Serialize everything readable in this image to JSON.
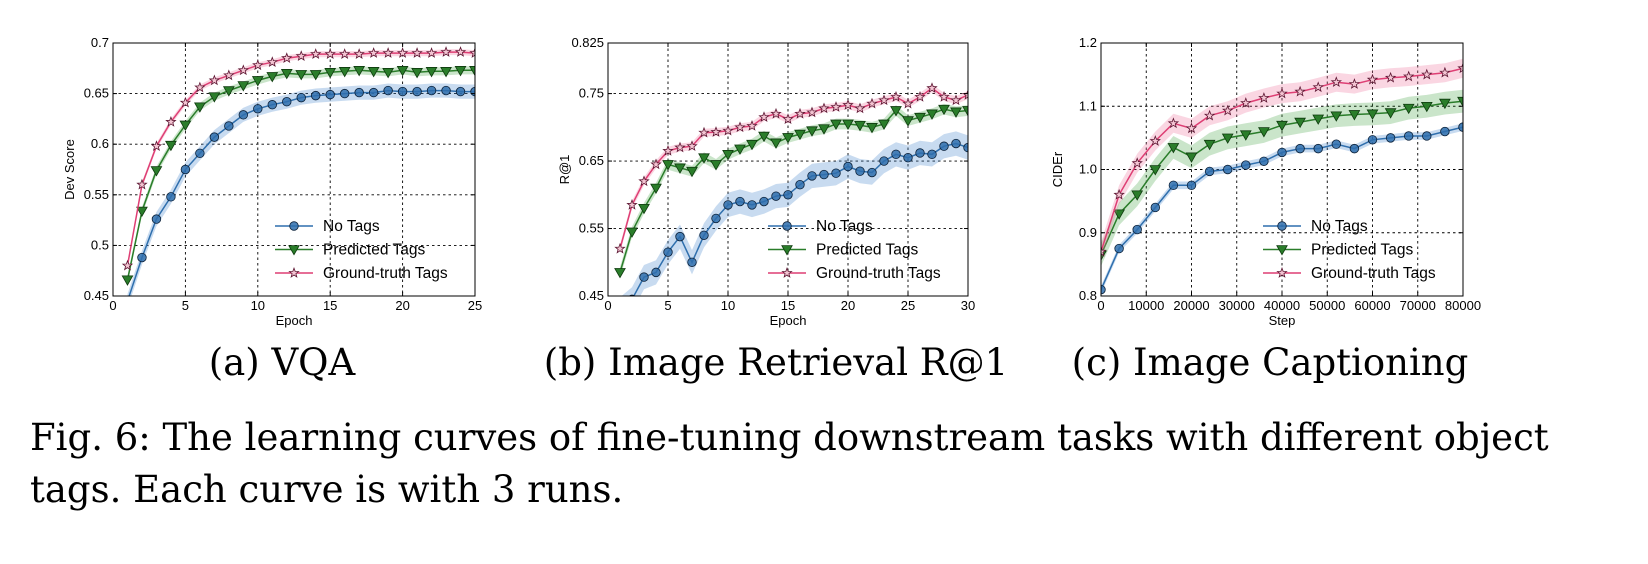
{
  "figure_caption": {
    "label": "Fig. 6:",
    "text": "The learning curves of fine-tuning downstream tasks with different object tags. Each curve is with 3 runs."
  },
  "colors": {
    "no_tags": "#2f6fad",
    "no_tags_fill": "#3a7dc9",
    "predicted_tags": "#2a7d2a",
    "predicted_tags_fill": "#3fa33f",
    "ground_truth_tags": "#de3f74",
    "ground_truth_tags_fill": "#ee6b96"
  },
  "chart_data": [
    {
      "type": "line",
      "subcaption": "(a) VQA",
      "xlabel": "Epoch",
      "ylabel": "Dev Score",
      "xlim": [
        0,
        25
      ],
      "ylim": [
        0.45,
        0.7
      ],
      "xticks": [
        0,
        5,
        10,
        15,
        20,
        25
      ],
      "yticks": [
        0.45,
        0.5,
        0.55,
        0.6,
        0.65,
        0.7
      ],
      "xtick_labels": [
        "0",
        "5",
        "10",
        "15",
        "20",
        "25"
      ],
      "ytick_labels": [
        "0.45",
        "0.5",
        "0.55",
        "0.6",
        "0.65",
        "0.7"
      ],
      "grid": true,
      "legend": "bottom-right",
      "series": [
        {
          "name": "No Tags",
          "marker": "circle",
          "x": [
            1,
            2,
            3,
            4,
            5,
            6,
            7,
            8,
            9,
            10,
            11,
            12,
            13,
            14,
            15,
            16,
            17,
            18,
            19,
            20,
            21,
            22,
            23,
            24,
            25
          ],
          "y": [
            0.445,
            0.488,
            0.526,
            0.548,
            0.575,
            0.591,
            0.607,
            0.618,
            0.629,
            0.635,
            0.639,
            0.642,
            0.646,
            0.648,
            0.649,
            0.65,
            0.651,
            0.651,
            0.653,
            0.652,
            0.652,
            0.653,
            0.653,
            0.652,
            0.652
          ],
          "band": 0.007
        },
        {
          "name": "Predicted Tags",
          "marker": "triangle-down",
          "x": [
            1,
            2,
            3,
            4,
            5,
            6,
            7,
            8,
            9,
            10,
            11,
            12,
            13,
            14,
            15,
            16,
            17,
            18,
            19,
            20,
            21,
            22,
            23,
            24,
            25
          ],
          "y": [
            0.466,
            0.534,
            0.574,
            0.599,
            0.619,
            0.637,
            0.647,
            0.653,
            0.658,
            0.663,
            0.667,
            0.67,
            0.669,
            0.669,
            0.671,
            0.672,
            0.673,
            0.672,
            0.671,
            0.673,
            0.671,
            0.672,
            0.672,
            0.673,
            0.673
          ],
          "band": 0.004
        },
        {
          "name": "Ground-truth Tags",
          "marker": "star",
          "x": [
            1,
            2,
            3,
            4,
            5,
            6,
            7,
            8,
            9,
            10,
            11,
            12,
            13,
            14,
            15,
            16,
            17,
            18,
            19,
            20,
            21,
            22,
            23,
            24,
            25
          ],
          "y": [
            0.48,
            0.56,
            0.598,
            0.622,
            0.641,
            0.656,
            0.663,
            0.668,
            0.673,
            0.678,
            0.681,
            0.685,
            0.687,
            0.689,
            0.689,
            0.689,
            0.689,
            0.69,
            0.69,
            0.69,
            0.69,
            0.69,
            0.691,
            0.691,
            0.69
          ],
          "band": 0.003
        }
      ]
    },
    {
      "type": "line",
      "subcaption": "(b) Image Retrieval R@1",
      "xlabel": "Epoch",
      "ylabel": "R@1",
      "xlim": [
        0,
        30
      ],
      "ylim": [
        0.45,
        0.825
      ],
      "xticks": [
        0,
        5,
        10,
        15,
        20,
        25,
        30
      ],
      "yticks": [
        0.45,
        0.55,
        0.65,
        0.75,
        0.825
      ],
      "xtick_labels": [
        "0",
        "5",
        "10",
        "15",
        "20",
        "25",
        "30"
      ],
      "ytick_labels": [
        "0.45",
        "0.55",
        "0.65",
        "0.75",
        "0.825"
      ],
      "grid": true,
      "legend": "bottom-right",
      "series": [
        {
          "name": "No Tags",
          "marker": "circle",
          "x": [
            1,
            2,
            3,
            4,
            5,
            6,
            7,
            8,
            9,
            10,
            11,
            12,
            13,
            14,
            15,
            16,
            17,
            18,
            19,
            20,
            21,
            22,
            23,
            24,
            25,
            26,
            27,
            28,
            29,
            30
          ],
          "y": [
            0.43,
            0.445,
            0.478,
            0.485,
            0.515,
            0.538,
            0.5,
            0.54,
            0.565,
            0.585,
            0.59,
            0.585,
            0.59,
            0.598,
            0.6,
            0.615,
            0.628,
            0.63,
            0.632,
            0.642,
            0.635,
            0.633,
            0.65,
            0.66,
            0.655,
            0.662,
            0.66,
            0.672,
            0.676,
            0.67
          ],
          "band": 0.018
        },
        {
          "name": "Predicted Tags",
          "marker": "triangle-down",
          "x": [
            1,
            2,
            3,
            4,
            5,
            6,
            7,
            8,
            9,
            10,
            11,
            12,
            13,
            14,
            15,
            16,
            17,
            18,
            19,
            20,
            21,
            22,
            23,
            24,
            25,
            26,
            27,
            28,
            29,
            30
          ],
          "y": [
            0.485,
            0.545,
            0.58,
            0.61,
            0.645,
            0.64,
            0.635,
            0.655,
            0.645,
            0.66,
            0.668,
            0.675,
            0.687,
            0.677,
            0.685,
            0.69,
            0.695,
            0.698,
            0.705,
            0.705,
            0.703,
            0.7,
            0.705,
            0.725,
            0.71,
            0.715,
            0.72,
            0.727,
            0.723,
            0.725
          ],
          "band": 0.008
        },
        {
          "name": "Ground-truth Tags",
          "marker": "star",
          "x": [
            1,
            2,
            3,
            4,
            5,
            6,
            7,
            8,
            9,
            10,
            11,
            12,
            13,
            14,
            15,
            16,
            17,
            18,
            19,
            20,
            21,
            22,
            23,
            24,
            25,
            26,
            27,
            28,
            29,
            30
          ],
          "y": [
            0.52,
            0.585,
            0.62,
            0.645,
            0.665,
            0.67,
            0.672,
            0.692,
            0.693,
            0.695,
            0.7,
            0.702,
            0.715,
            0.72,
            0.712,
            0.72,
            0.722,
            0.728,
            0.73,
            0.733,
            0.728,
            0.735,
            0.74,
            0.745,
            0.735,
            0.745,
            0.758,
            0.745,
            0.74,
            0.748
          ],
          "band": 0.006
        }
      ]
    },
    {
      "type": "line",
      "subcaption": "(c) Image Captioning",
      "xlabel": "Step",
      "ylabel": "CIDEr",
      "xlim": [
        0,
        80000
      ],
      "ylim": [
        0.8,
        1.2
      ],
      "xticks": [
        0,
        10000,
        20000,
        30000,
        40000,
        50000,
        60000,
        70000,
        80000
      ],
      "yticks": [
        0.8,
        0.9,
        1.0,
        1.1,
        1.2
      ],
      "xtick_labels": [
        "0",
        "10000",
        "20000",
        "30000",
        "40000",
        "50000",
        "60000",
        "70000",
        "80000"
      ],
      "ytick_labels": [
        "0.8",
        "0.9",
        "1.0",
        "1.1",
        "1.2"
      ],
      "grid": true,
      "legend": "bottom-right",
      "series": [
        {
          "name": "No Tags",
          "marker": "circle",
          "x": [
            0,
            4000,
            8000,
            12000,
            16000,
            20000,
            24000,
            28000,
            32000,
            36000,
            40000,
            44000,
            48000,
            52000,
            56000,
            60000,
            64000,
            68000,
            72000,
            76000,
            80000
          ],
          "y": [
            0.81,
            0.875,
            0.905,
            0.94,
            0.975,
            0.975,
            0.997,
            1.0,
            1.007,
            1.013,
            1.027,
            1.033,
            1.033,
            1.04,
            1.033,
            1.047,
            1.05,
            1.053,
            1.053,
            1.06,
            1.067
          ],
          "band": 0.006
        },
        {
          "name": "Predicted Tags",
          "marker": "triangle-down",
          "x": [
            0,
            4000,
            8000,
            12000,
            16000,
            20000,
            24000,
            28000,
            32000,
            36000,
            40000,
            44000,
            48000,
            52000,
            56000,
            60000,
            64000,
            68000,
            72000,
            76000,
            80000
          ],
          "y": [
            0.865,
            0.93,
            0.96,
            1.0,
            1.035,
            1.02,
            1.04,
            1.05,
            1.055,
            1.06,
            1.07,
            1.075,
            1.08,
            1.085,
            1.087,
            1.088,
            1.09,
            1.097,
            1.1,
            1.105,
            1.108
          ],
          "band": 0.018
        },
        {
          "name": "Ground-truth Tags",
          "marker": "star",
          "x": [
            0,
            4000,
            8000,
            12000,
            16000,
            20000,
            24000,
            28000,
            32000,
            36000,
            40000,
            44000,
            48000,
            52000,
            56000,
            60000,
            64000,
            68000,
            72000,
            76000,
            80000
          ],
          "y": [
            0.87,
            0.96,
            1.01,
            1.045,
            1.073,
            1.065,
            1.085,
            1.093,
            1.105,
            1.113,
            1.12,
            1.123,
            1.13,
            1.138,
            1.135,
            1.142,
            1.145,
            1.147,
            1.15,
            1.153,
            1.16
          ],
          "band": 0.015
        }
      ]
    }
  ]
}
